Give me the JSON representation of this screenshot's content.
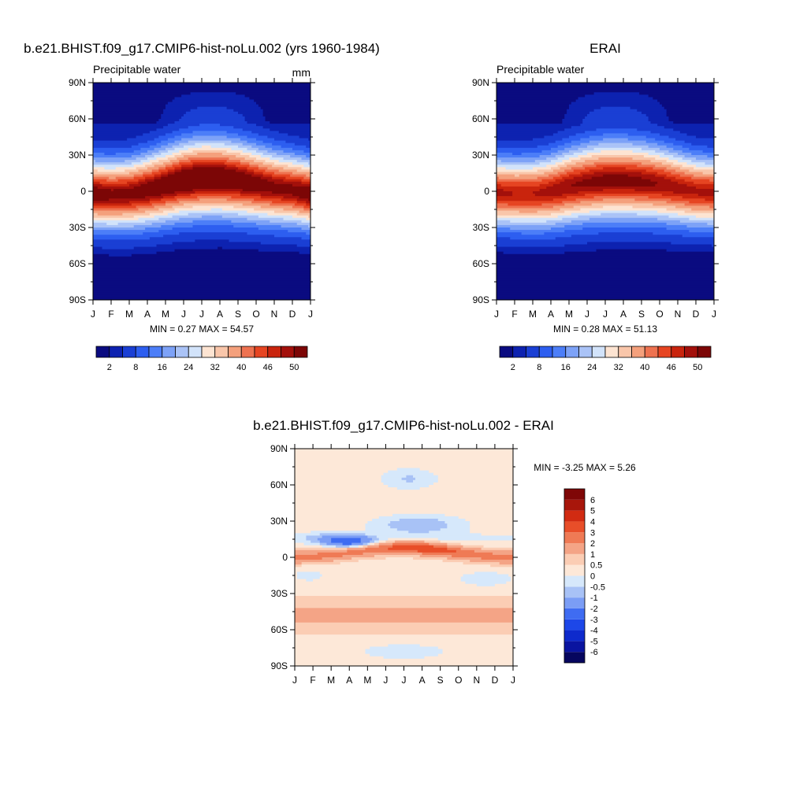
{
  "chart_data": [
    {
      "type": "heatmap",
      "id": "model",
      "title": "b.e21.BHIST.f09_g17.CMIP6-hist-noLu.002 (yrs 1960-1984)",
      "subtitle_left": "Precipitable water",
      "subtitle_right": "mm",
      "x_tick_labels": [
        "J",
        "F",
        "M",
        "A",
        "M",
        "J",
        "J",
        "A",
        "S",
        "O",
        "N",
        "D",
        "J"
      ],
      "y_tick_labels": [
        "90N",
        "60N",
        "30N",
        "0",
        "30S",
        "60S",
        "90S"
      ],
      "y_tick_values": [
        90,
        60,
        30,
        0,
        -30,
        -60,
        -90
      ],
      "ylim": [
        -90,
        90
      ],
      "stats": "MIN =   0.27 MAX =  54.57",
      "min": 0.27,
      "max": 54.57,
      "itcz_latitude_by_month": [
        -2,
        -3,
        -2,
        1,
        5,
        9,
        11,
        11,
        9,
        6,
        3,
        1,
        -2
      ],
      "peak_value_by_month": [
        52,
        51,
        51,
        52,
        53,
        54,
        54.5,
        54,
        53,
        52,
        51,
        51,
        52
      ],
      "colorbar": {
        "orientation": "horizontal",
        "levels": [
          2,
          4,
          8,
          12,
          16,
          20,
          24,
          28,
          32,
          36,
          40,
          43,
          46,
          48,
          50
        ],
        "labels": [
          "2",
          "8",
          "16",
          "24",
          "32",
          "40",
          "46",
          "50"
        ],
        "label_levels": [
          2,
          8,
          16,
          24,
          32,
          40,
          46,
          50
        ],
        "colors": [
          "#0a0b80",
          "#0d22b0",
          "#1a3fd4",
          "#2d5ef0",
          "#4c7ef8",
          "#7da2f7",
          "#aac3f7",
          "#d2e3fa",
          "#fde4d2",
          "#f9c6aa",
          "#f4a07c",
          "#ee7250",
          "#e64522",
          "#c9240d",
          "#a3100b",
          "#7c0606"
        ]
      }
    },
    {
      "type": "heatmap",
      "id": "obs",
      "title": "ERAI",
      "subtitle_left": "Precipitable water",
      "x_tick_labels": [
        "J",
        "F",
        "M",
        "A",
        "M",
        "J",
        "J",
        "A",
        "S",
        "O",
        "N",
        "D",
        "J"
      ],
      "y_tick_labels": [
        "90N",
        "60N",
        "30N",
        "0",
        "30S",
        "60S",
        "90S"
      ],
      "y_tick_values": [
        90,
        60,
        30,
        0,
        -30,
        -60,
        -90
      ],
      "ylim": [
        -90,
        90
      ],
      "stats": "MIN =   0.28 MAX =  51.13",
      "min": 0.28,
      "max": 51.13,
      "itcz_latitude_by_month": [
        -1,
        -2,
        -2,
        0,
        4,
        7,
        9,
        9,
        8,
        6,
        3,
        0,
        -1
      ],
      "peak_value_by_month": [
        48.5,
        48,
        48,
        49,
        50,
        50.5,
        51,
        51,
        50.5,
        50,
        49,
        48.5,
        48.5
      ],
      "colorbar": {
        "orientation": "horizontal",
        "levels": [
          2,
          4,
          8,
          12,
          16,
          20,
          24,
          28,
          32,
          36,
          40,
          43,
          46,
          48,
          50
        ],
        "labels": [
          "2",
          "8",
          "16",
          "24",
          "32",
          "40",
          "46",
          "50"
        ],
        "label_levels": [
          2,
          8,
          16,
          24,
          32,
          40,
          46,
          50
        ],
        "colors": [
          "#0a0b80",
          "#0d22b0",
          "#1a3fd4",
          "#2d5ef0",
          "#4c7ef8",
          "#7da2f7",
          "#aac3f7",
          "#d2e3fa",
          "#fde4d2",
          "#f9c6aa",
          "#f4a07c",
          "#ee7250",
          "#e64522",
          "#c9240d",
          "#a3100b",
          "#7c0606"
        ]
      }
    },
    {
      "type": "heatmap",
      "id": "diff",
      "title": "b.e21.BHIST.f09_g17.CMIP6-hist-noLu.002 - ERAI",
      "x_tick_labels": [
        "J",
        "F",
        "M",
        "A",
        "M",
        "J",
        "J",
        "A",
        "S",
        "O",
        "N",
        "D",
        "J"
      ],
      "y_tick_labels": [
        "90N",
        "60N",
        "30N",
        "0",
        "30S",
        "60S",
        "90S"
      ],
      "y_tick_values": [
        90,
        60,
        30,
        0,
        -30,
        -60,
        -90
      ],
      "ylim": [
        -90,
        90
      ],
      "stats": "MIN =  -3.25 MAX =   5.26",
      "min": -3.25,
      "max": 5.26,
      "colorbar": {
        "orientation": "vertical",
        "levels": [
          -6,
          -5,
          -4,
          -3,
          -2,
          -1,
          -0.5,
          0,
          0.5,
          1,
          2,
          3,
          4,
          5,
          6
        ],
        "labels": [
          "-6",
          "-5",
          "-4",
          "-3",
          "-2",
          "-1",
          "-0.5",
          "0",
          "0.5",
          "1",
          "2",
          "3",
          "4",
          "5",
          "6"
        ],
        "label_levels": [
          -6,
          -5,
          -4,
          -3,
          -2,
          -1,
          -0.5,
          0,
          0.5,
          1,
          2,
          3,
          4,
          5,
          6
        ],
        "colors": [
          "#06065e",
          "#0a14a0",
          "#0e2acc",
          "#1d47e8",
          "#3f6cf2",
          "#7b9df5",
          "#a8c2f6",
          "#d6e8fb",
          "#fde8d8",
          "#fbcdb4",
          "#f4a486",
          "#ef7a55",
          "#e84e29",
          "#d12b12",
          "#a8160b",
          "#7f0707"
        ]
      }
    }
  ]
}
